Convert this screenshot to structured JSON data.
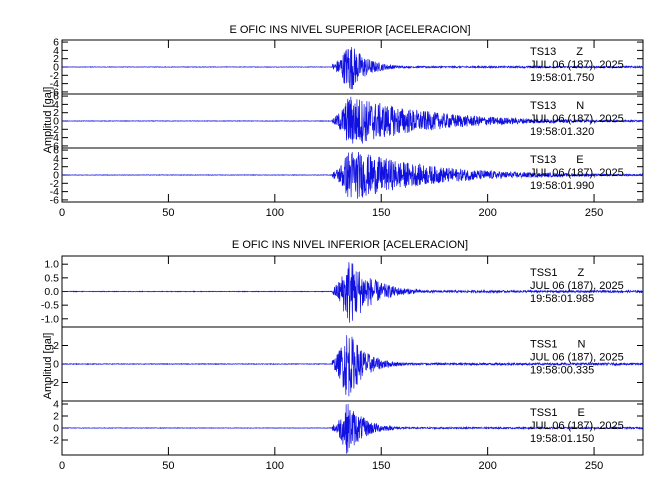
{
  "colors": {
    "trace": "#1010e0",
    "axis": "#000000",
    "background": "#ffffff"
  },
  "chart_data": [
    {
      "type": "line",
      "title": "E OFIC INS NIVEL SUPERIOR [ACELERACION]",
      "xlabel": "",
      "ylabel": "Amplitud [gal]",
      "xlim": [
        0,
        273
      ],
      "x_ticks": [
        0,
        50,
        100,
        150,
        200,
        250
      ],
      "grid": false,
      "channels": [
        {
          "station": "TS13",
          "component": "Z",
          "date": "JUL 06 (187), 2025",
          "time": "19:58:01.750",
          "ylim": [
            -6.5,
            6.5
          ],
          "y_ticks": [
            "6",
            "4",
            "2",
            "0",
            "-2",
            "-4",
            "-6"
          ],
          "onset_s": 127,
          "peak_s": 135,
          "peak_amplitude": 6.5,
          "coda_end_s": 160
        },
        {
          "station": "TS13",
          "component": "N",
          "date": "JUL 06 (187), 2025",
          "time": "19:58:01.320",
          "ylim": [
            -6.5,
            6.5
          ],
          "y_ticks": [
            "6",
            "4",
            "2",
            "0",
            "-2",
            "-4",
            "-6"
          ],
          "onset_s": 127,
          "peak_s": 135,
          "peak_amplitude": 6.5,
          "coda_end_s": 250
        },
        {
          "station": "TS13",
          "component": "E",
          "date": "JUL 06 (187), 2025",
          "time": "19:58:01.990",
          "ylim": [
            -6.5,
            6.5
          ],
          "y_ticks": [
            "6",
            "4",
            "2",
            "0",
            "-2",
            "-4",
            "-6"
          ],
          "onset_s": 127,
          "peak_s": 135,
          "peak_amplitude": 6.5,
          "coda_end_s": 250
        }
      ]
    },
    {
      "type": "line",
      "title": "E OFIC INS NIVEL INFERIOR [ACELERACION]",
      "xlabel": "",
      "ylabel": "Amplitud [gal]",
      "xlim": [
        0,
        273
      ],
      "x_ticks": [
        0,
        50,
        100,
        150,
        200,
        250
      ],
      "grid": false,
      "channels": [
        {
          "station": "TSS1",
          "component": "Z",
          "date": "JUL 06 (187), 2025",
          "time": "19:58:01.985",
          "ylim": [
            -1.3,
            1.3
          ],
          "y_ticks": [
            "1.0",
            "0.5",
            "0.0",
            "-0.5",
            "-1.0"
          ],
          "onset_s": 127,
          "peak_s": 135,
          "peak_amplitude": 1.3,
          "coda_end_s": 170
        },
        {
          "station": "TSS1",
          "component": "N",
          "date": "JUL 06 (187), 2025",
          "time": "19:58:00.335",
          "ylim": [
            -4,
            4
          ],
          "y_ticks": [
            "2",
            "0",
            "-2"
          ],
          "onset_s": 127,
          "peak_s": 134,
          "peak_amplitude": 4,
          "coda_end_s": 160
        },
        {
          "station": "TSS1",
          "component": "E",
          "date": "JUL 06 (187), 2025",
          "time": "19:58:01.150",
          "ylim": [
            -4.5,
            4.5
          ],
          "y_ticks": [
            "4",
            "2",
            "0",
            "-2"
          ],
          "onset_s": 127,
          "peak_s": 134,
          "peak_amplitude": 4.5,
          "coda_end_s": 160
        }
      ]
    }
  ]
}
